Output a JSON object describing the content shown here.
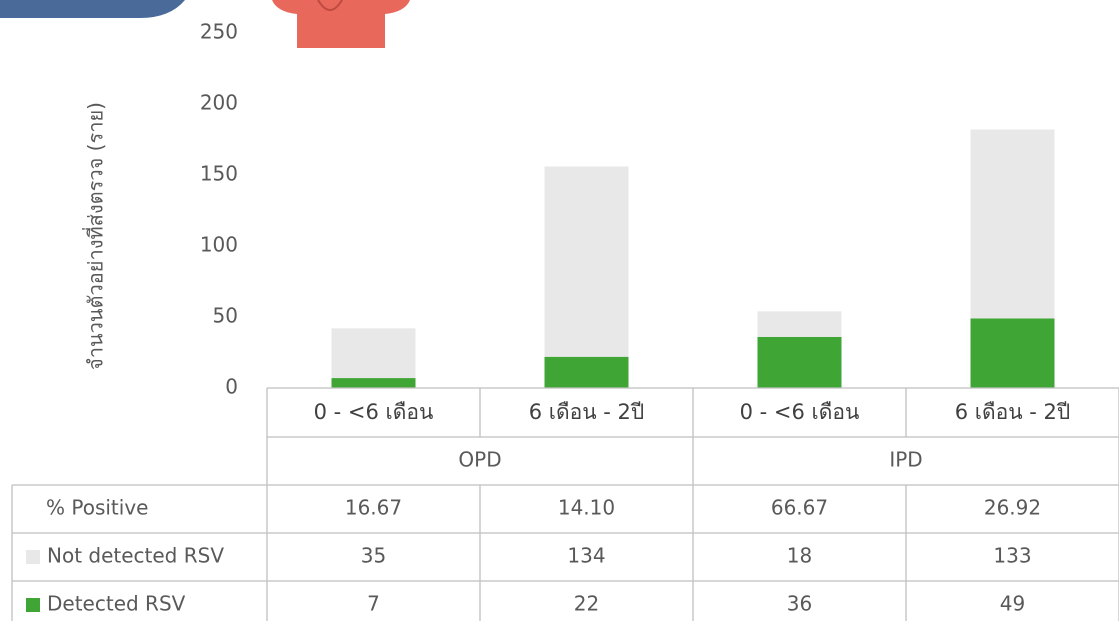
{
  "chart_data": {
    "type": "stacked_bar",
    "y_label": "จำนวนตัวอย่างที่ส่งตรวจ (ราย)",
    "categories": [
      "0 - <6 เดือน",
      "6 เดือน - 2ปี",
      "0 - <6 เดือน",
      "6 เดือน - 2ปี"
    ],
    "groups": [
      "OPD",
      "IPD"
    ],
    "series": [
      {
        "name": "Detected RSV",
        "color": "#3fa535",
        "values": [
          7,
          22,
          36,
          49
        ]
      },
      {
        "name": "Not detected RSV",
        "color": "#e8e8e8",
        "values": [
          35,
          134,
          18,
          133
        ]
      }
    ],
    "percent_positive": {
      "name": "% Positive",
      "values": [
        16.67,
        14.1,
        66.67,
        26.92
      ],
      "value_labels": [
        "16.67",
        "14.10",
        "66.67",
        "26.92"
      ]
    },
    "ylim": [
      0,
      250
    ],
    "yticks": [
      0,
      50,
      100,
      150,
      200,
      250
    ],
    "grid": false
  }
}
